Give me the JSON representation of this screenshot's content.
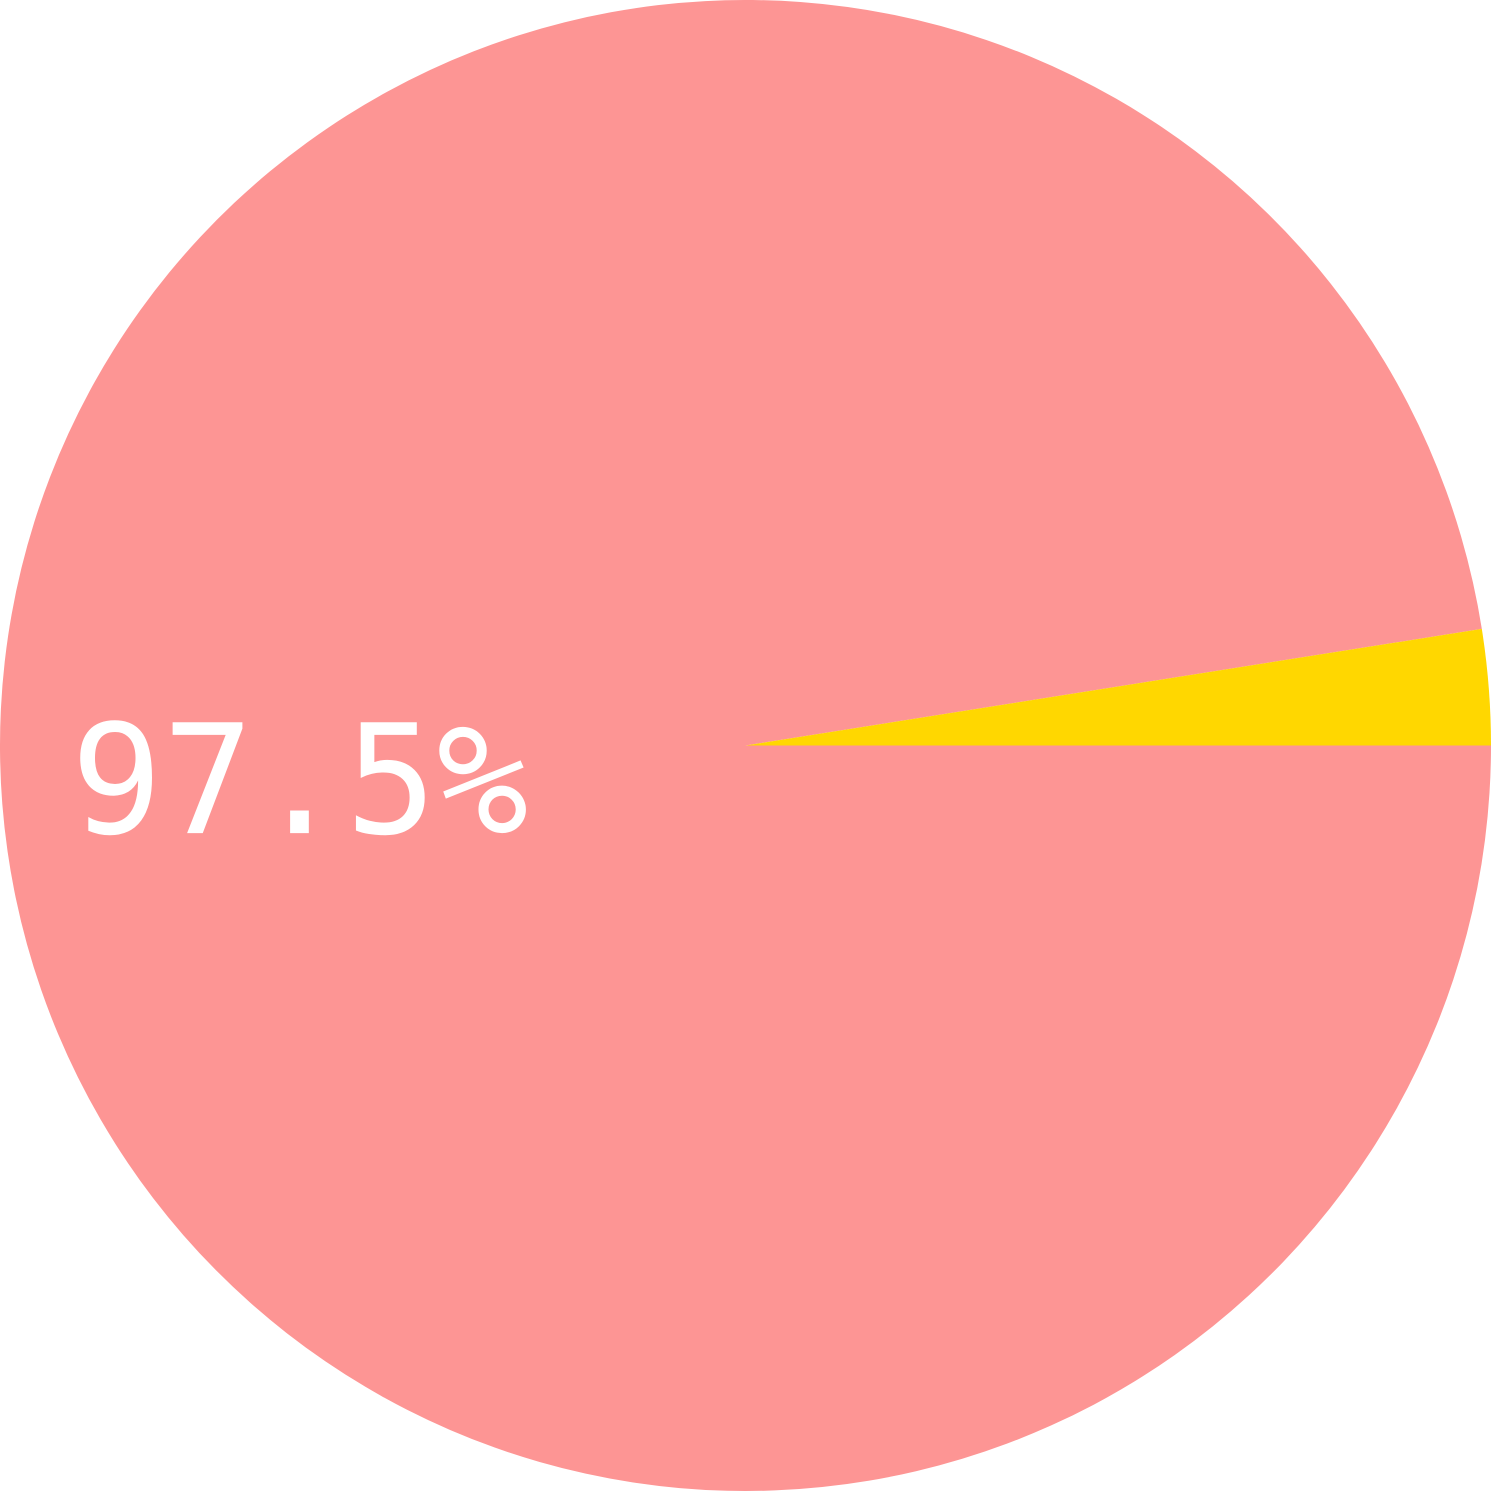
{
  "chart_data": {
    "type": "pie",
    "title": "",
    "start_angle_deg": 0,
    "direction": "clockwise",
    "slices": [
      {
        "value": 97.5,
        "label": "97.5%",
        "color": "#FD9594"
      },
      {
        "value": 2.5,
        "label": "",
        "color": "#FFD700"
      }
    ]
  }
}
